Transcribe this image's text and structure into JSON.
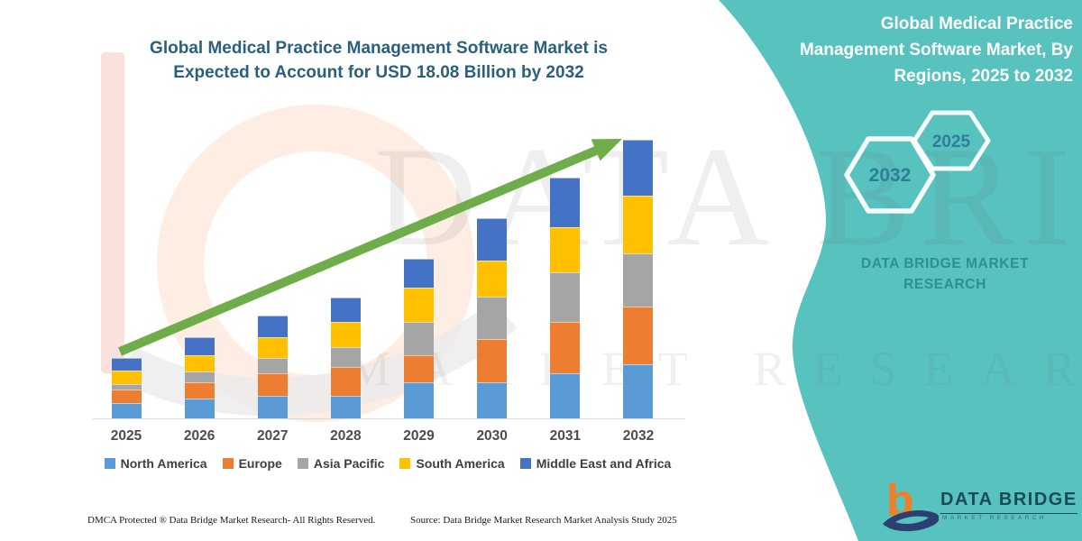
{
  "header": {
    "title_lines": [
      "Global Medical Practice Management Software Market is",
      "Expected to Account for USD 18.08 Billion by 2032"
    ]
  },
  "side_panel": {
    "title_lines": [
      "Global Medical Practice",
      "Management Software Market, By",
      "Regions, 2025 to 2032"
    ],
    "hexagon_large_label": "2032",
    "hexagon_small_label": "2025",
    "brand_lines": [
      "DATA BRIDGE MARKET",
      "RESEARCH"
    ],
    "background_color": "#57C2BE"
  },
  "chart_data": {
    "type": "bar",
    "stacked": true,
    "title": "Global Medical Practice Management Software Market, By Regions, 2025 to 2032",
    "unit": "USD Billion",
    "categories": [
      "2025",
      "2026",
      "2027",
      "2028",
      "2029",
      "2030",
      "2031",
      "2032"
    ],
    "series": [
      {
        "name": "North America",
        "color": "#5B9BD5",
        "values": [
          0.99,
          1.29,
          1.46,
          1.46,
          2.34,
          2.34,
          2.93,
          3.51
        ]
      },
      {
        "name": "Europe",
        "color": "#ED7D31",
        "values": [
          0.88,
          1.05,
          1.46,
          1.87,
          1.76,
          2.81,
          3.33,
          3.75
        ]
      },
      {
        "name": "Asia Pacific",
        "color": "#A5A5A5",
        "values": [
          0.35,
          0.7,
          0.99,
          1.29,
          2.16,
          2.75,
          3.22,
          3.45
        ]
      },
      {
        "name": "South America",
        "color": "#FFC000",
        "values": [
          0.88,
          1.05,
          1.35,
          1.64,
          2.22,
          2.34,
          2.93,
          3.74
        ]
      },
      {
        "name": "Middle East and Africa",
        "color": "#4472C4",
        "values": [
          0.82,
          1.17,
          1.4,
          1.58,
          1.87,
          2.75,
          3.22,
          3.63
        ]
      }
    ],
    "totals_estimated": [
      3.92,
      5.26,
      6.66,
      7.84,
      10.35,
      12.99,
      15.63,
      18.08
    ],
    "final_value_label": "USD 18.08 Billion by 2032",
    "trend_arrow_color": "#6EAD49",
    "axis_baseline_color": "#D9D9D9",
    "legend_position": "bottom",
    "gridlines": false,
    "ylim": [
      0,
      18.08
    ]
  },
  "watermark": {
    "line1": "DATA BRIDGE",
    "line2": "MARKET RESEARCH"
  },
  "footer": {
    "dmca": "DMCA Protected ® Data Bridge Market Research-  All Rights Reserved.",
    "source": "Source: Data Bridge Market Research  Market Analysis Study 2025"
  },
  "logo": {
    "brand": "DATA BRIDGE",
    "tagline": "MARKET RESEARCH"
  }
}
